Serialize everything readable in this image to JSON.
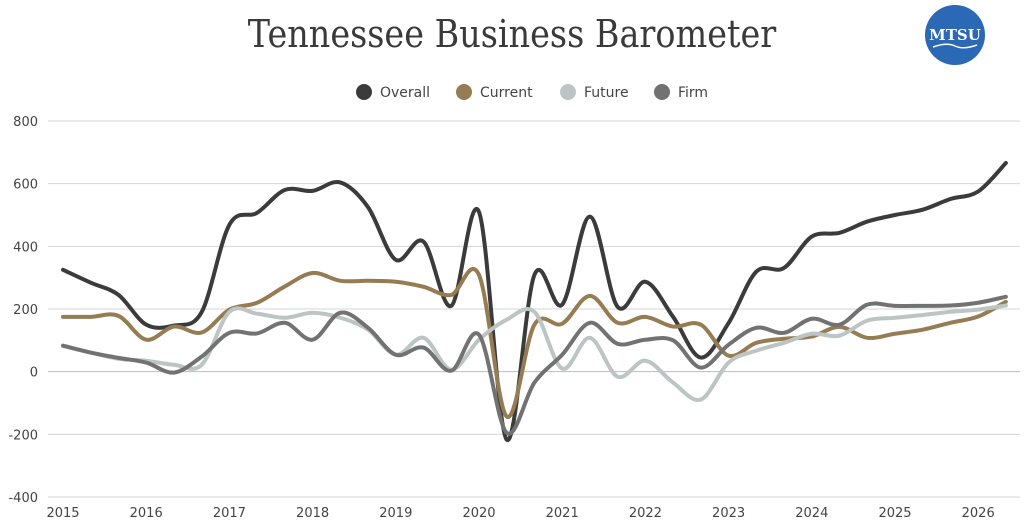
{
  "logo_text": "MTSU",
  "chart_data": {
    "type": "line",
    "title": "Tennessee Business Barometer",
    "xlabel": "",
    "ylabel": "",
    "ylim": [
      -400,
      800
    ],
    "yticks": [
      800,
      600,
      400,
      200,
      0,
      -200,
      -400
    ],
    "xticks": [
      "2015",
      "2016",
      "2017",
      "2018",
      "2019",
      "2020",
      "2021",
      "2022",
      "2023",
      "2024",
      "2025",
      "2026"
    ],
    "xlim": [
      2015,
      2026.33
    ],
    "x_step_years": 0.3333,
    "grid": true,
    "legend": "top",
    "series": [
      {
        "name": "Overall",
        "color": "#3b3b3b",
        "values": [
          325,
          284,
          245,
          150,
          147,
          190,
          469,
          507,
          580,
          577,
          604,
          525,
          357,
          415,
          210,
          510,
          -217,
          309,
          214,
          495,
          207,
          287,
          175,
          45,
          155,
          319,
          331,
          431,
          443,
          479,
          500,
          517,
          551,
          575,
          666
        ]
      },
      {
        "name": "Current",
        "color": "#957c52",
        "values": [
          175,
          175,
          178,
          102,
          144,
          125,
          198,
          220,
          272,
          315,
          290,
          290,
          287,
          271,
          245,
          309,
          -143,
          150,
          153,
          242,
          156,
          175,
          144,
          150,
          51,
          92,
          105,
          112,
          143,
          108,
          121,
          134,
          156,
          176,
          223
        ]
      },
      {
        "name": "Future",
        "color": "#bcc4c4",
        "values": [
          83,
          61,
          41,
          35,
          22,
          22,
          191,
          185,
          172,
          188,
          172,
          134,
          54,
          108,
          6,
          102,
          166,
          191,
          10,
          108,
          -16,
          35,
          -35,
          -89,
          29,
          67,
          92,
          121,
          115,
          163,
          172,
          181,
          191,
          198,
          211
        ]
      },
      {
        "name": "Firm",
        "color": "#727272",
        "values": [
          83,
          61,
          44,
          29,
          -3,
          48,
          124,
          122,
          156,
          102,
          188,
          140,
          54,
          77,
          3,
          118,
          -195,
          -35,
          54,
          156,
          89,
          102,
          100,
          13,
          86,
          140,
          124,
          169,
          150,
          214,
          210,
          210,
          211,
          220,
          239
        ]
      }
    ]
  }
}
